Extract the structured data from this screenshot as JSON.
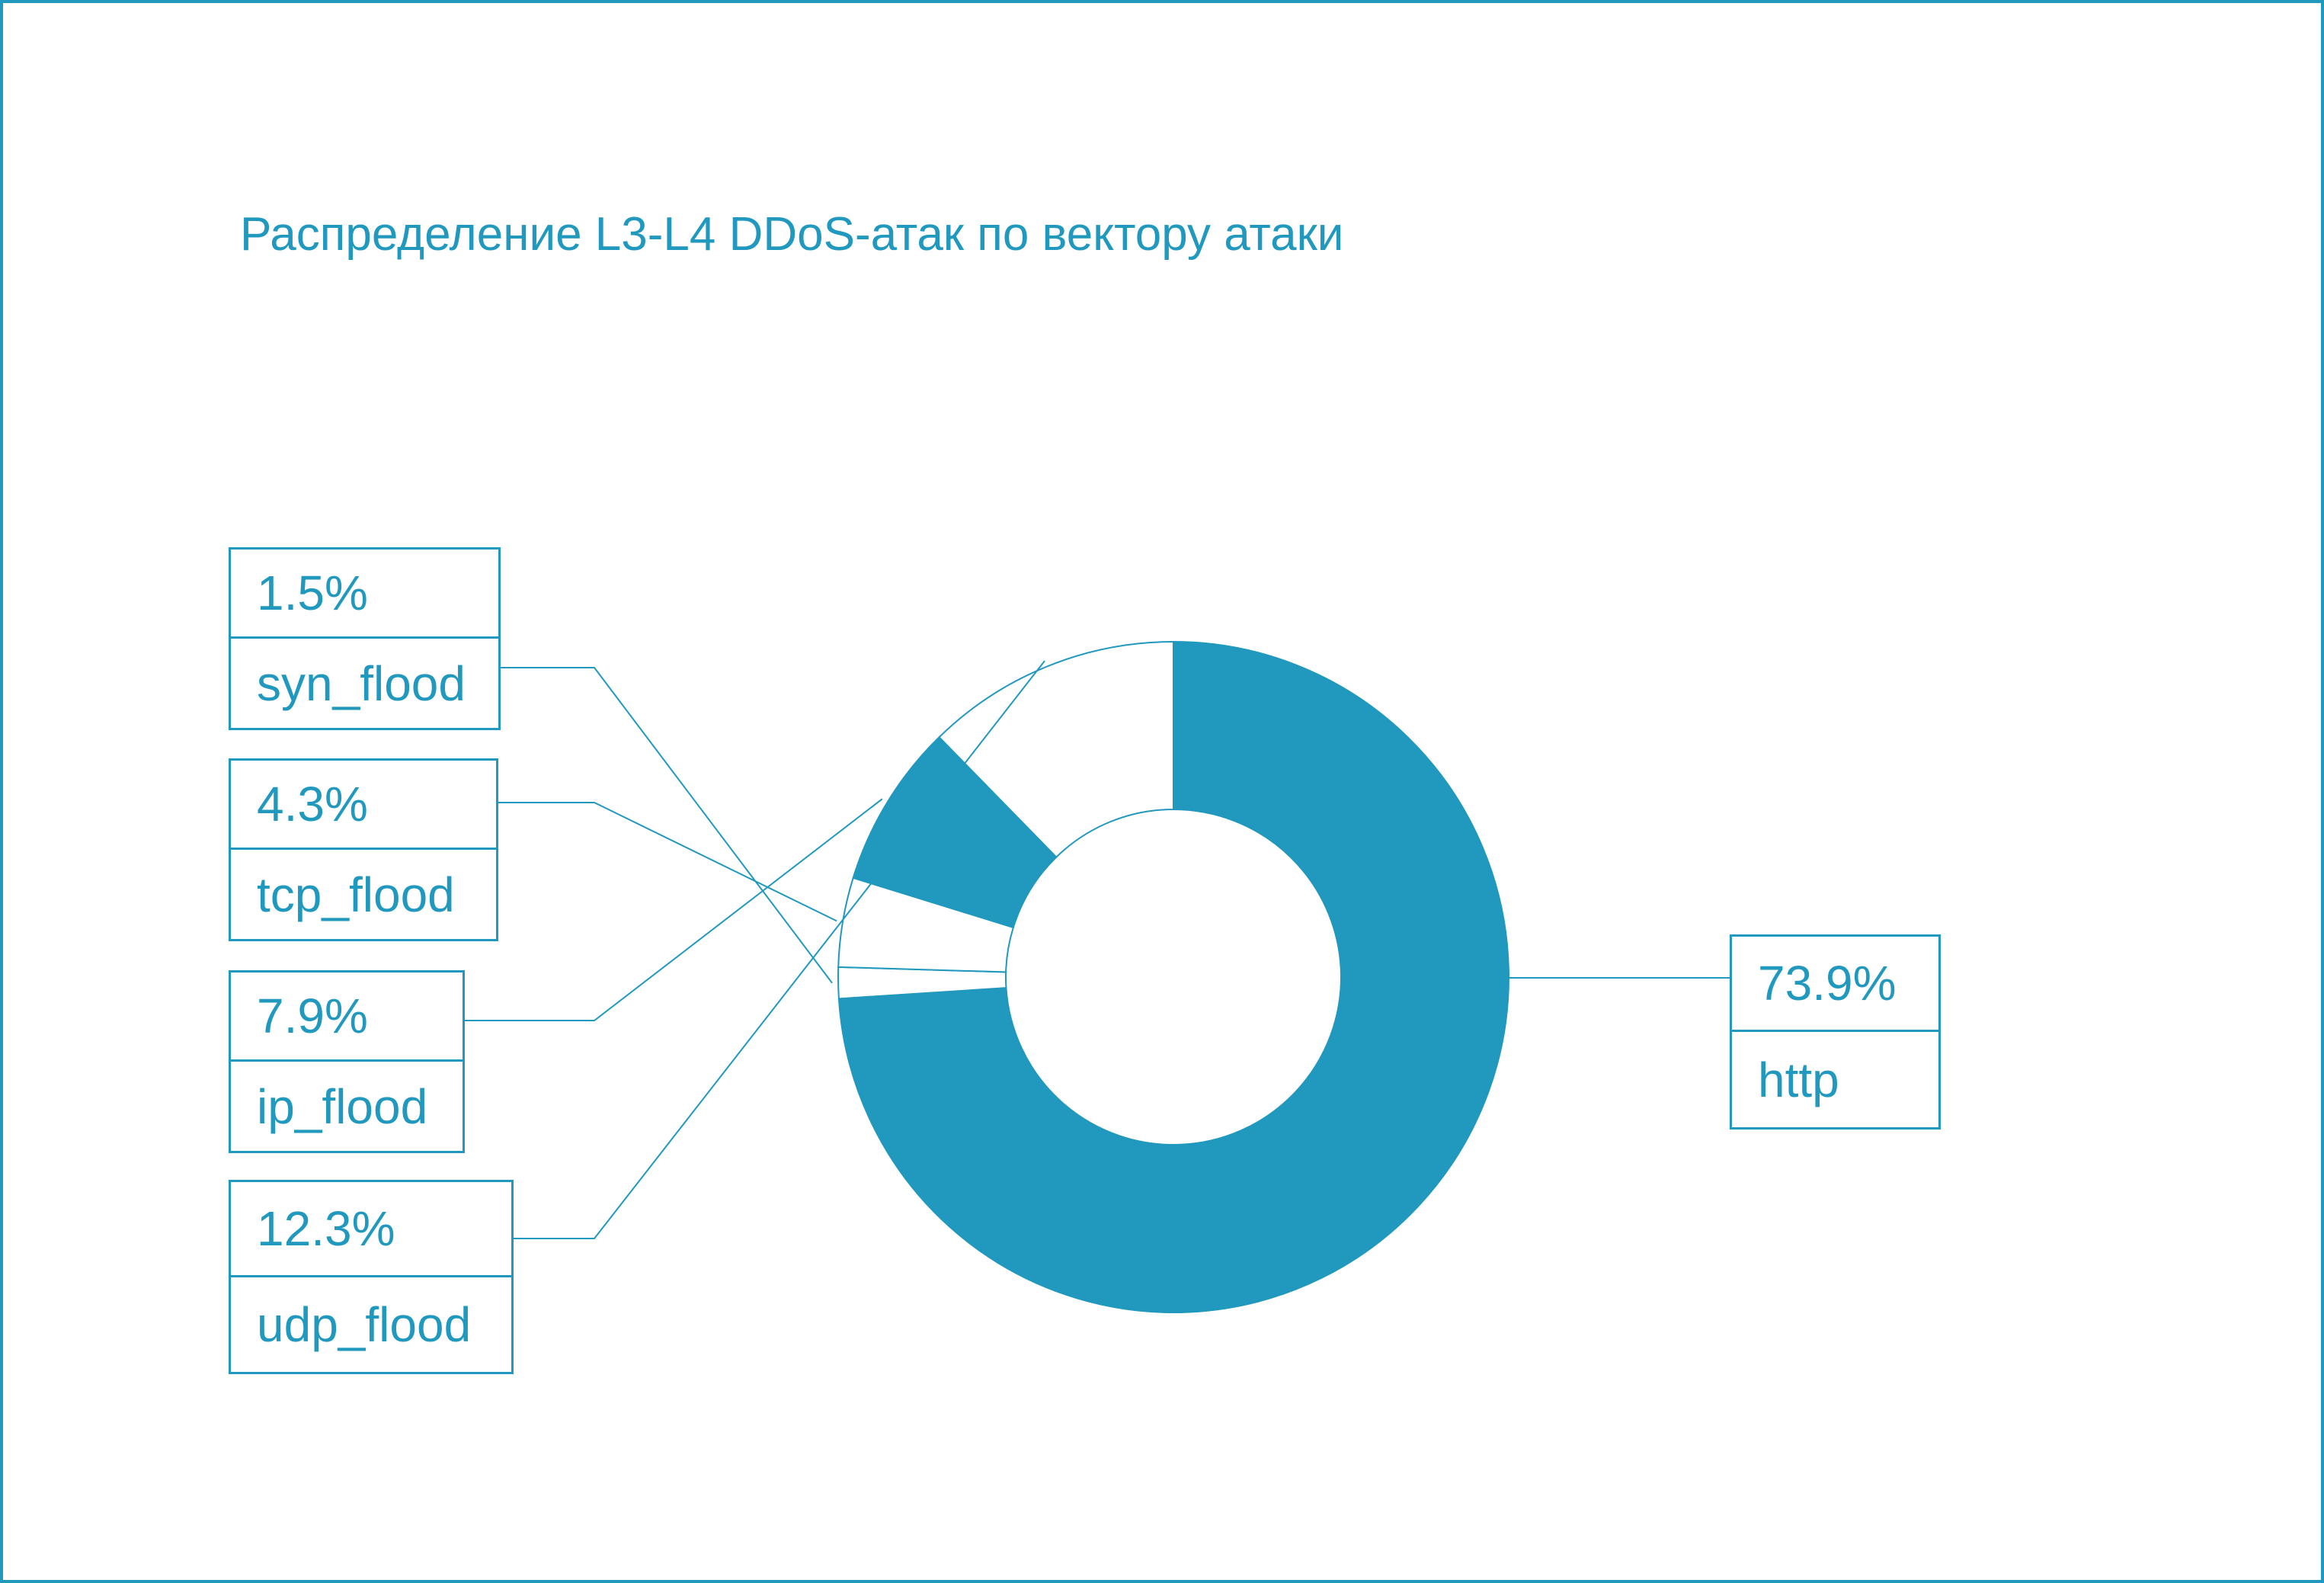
{
  "chart_data": {
    "type": "pie",
    "title": "Распределение L3-L4 DDoS-атак по вектору атаки",
    "series": [
      {
        "name": "http",
        "value": 73.9,
        "label": "73.9%",
        "color": "#2198bd"
      },
      {
        "name": "syn_flood",
        "value": 1.5,
        "label": "1.5%",
        "color": "#ffffff"
      },
      {
        "name": "tcp_flood",
        "value": 4.3,
        "label": "4.3%",
        "color": "#ffffff"
      },
      {
        "name": "ip_flood",
        "value": 7.9,
        "label": "7.9%",
        "color": "#2198bd"
      },
      {
        "name": "udp_flood",
        "value": 12.3,
        "label": "12.3%",
        "color": "#ffffff"
      }
    ],
    "donut": true,
    "legend": "none",
    "accent_color": "#2198bd"
  }
}
